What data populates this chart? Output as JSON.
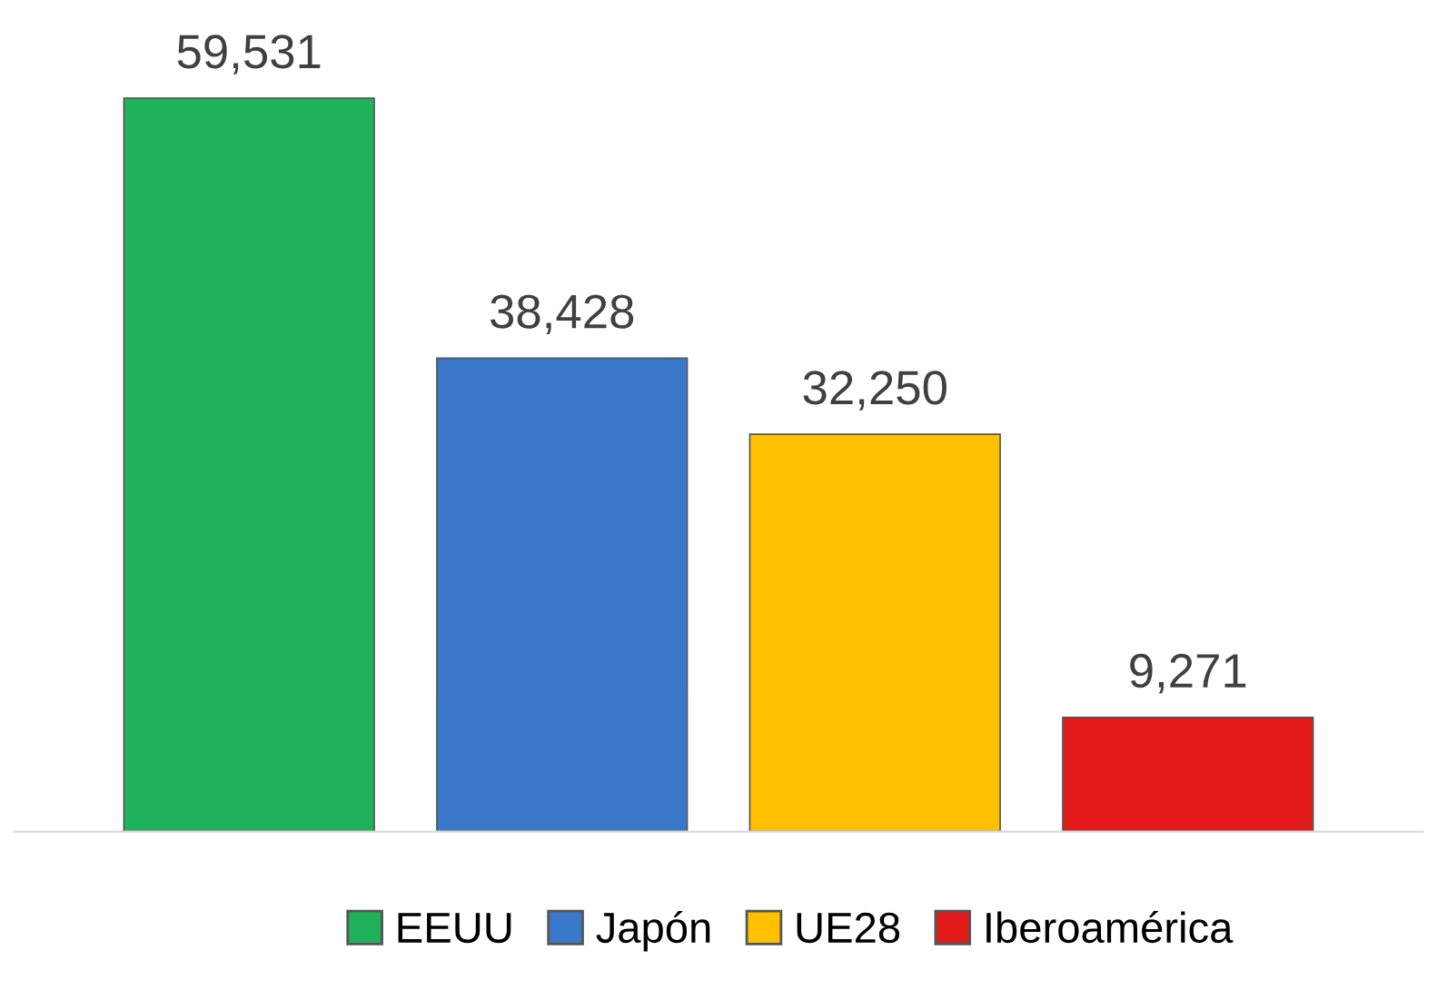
{
  "chart_data": {
    "type": "bar",
    "categories": [
      null,
      null,
      null,
      null
    ],
    "series": [
      {
        "name": "EEUU",
        "color": "#1fb25a",
        "values": [
          59531,
          null,
          null,
          null
        ],
        "value_labels": [
          "59,531",
          null,
          null,
          null
        ]
      },
      {
        "name": "Japón",
        "color": "#3a78c9",
        "values": [
          null,
          38428,
          null,
          null
        ],
        "value_labels": [
          null,
          "38,428",
          null,
          null
        ]
      },
      {
        "name": "UE28",
        "color": "#ffc000",
        "values": [
          null,
          null,
          32250,
          null
        ],
        "value_labels": [
          null,
          null,
          "32,250",
          null
        ]
      },
      {
        "name": "Iberoamérica",
        "color": "#e31a1c",
        "values": [
          null,
          null,
          null,
          9271
        ],
        "value_labels": [
          null,
          null,
          null,
          "9,271"
        ]
      }
    ],
    "stacked": true,
    "legend": "bottom",
    "grid": false
  }
}
